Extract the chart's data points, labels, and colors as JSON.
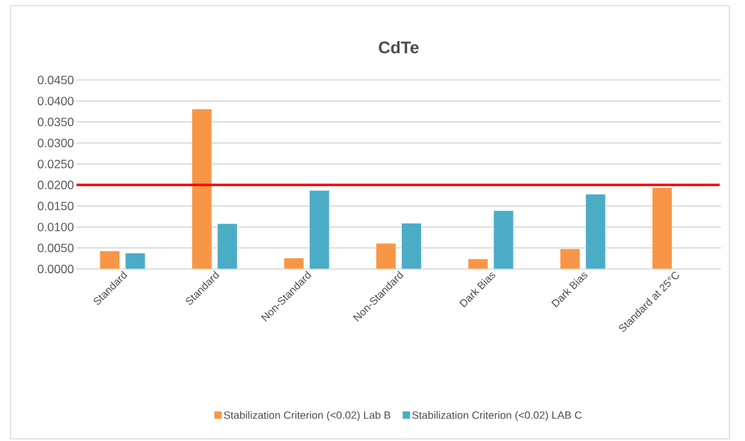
{
  "chart_data": {
    "type": "bar",
    "title": "CdTe",
    "categories": [
      "Standard",
      "Standard",
      "Non-Standard",
      "Non-Standard",
      "Dark Bias",
      "Dark Bias",
      "Standard at 25°C"
    ],
    "series": [
      {
        "name": "Stabilization Criterion (<0.02) Lab B",
        "color": "#f79646",
        "values": [
          0.0043,
          0.0381,
          0.0026,
          0.0061,
          0.0024,
          0.0048,
          0.0194
        ]
      },
      {
        "name": "Stabilization Criterion (<0.02) LAB C",
        "color": "#4bacc6",
        "values": [
          0.0038,
          0.0108,
          0.0187,
          0.0109,
          0.0139,
          0.0178,
          null
        ]
      }
    ],
    "ylim": [
      0,
      0.045
    ],
    "yticks": [
      {
        "value": 0,
        "label": "0.0000"
      },
      {
        "value": 0.005,
        "label": "0.0050"
      },
      {
        "value": 0.01,
        "label": "0.0100"
      },
      {
        "value": 0.015,
        "label": "0.0150"
      },
      {
        "value": 0.02,
        "label": "0.0200"
      },
      {
        "value": 0.025,
        "label": "0.0250"
      },
      {
        "value": 0.03,
        "label": "0.0300"
      },
      {
        "value": 0.035,
        "label": "0.0350"
      },
      {
        "value": 0.04,
        "label": "0.0400"
      },
      {
        "value": 0.045,
        "label": "0.0450"
      }
    ],
    "ref_lines": [
      {
        "axis": "y",
        "value": 0.02,
        "color": "#ff0000"
      }
    ],
    "grid": "y",
    "legend": "bottom"
  }
}
